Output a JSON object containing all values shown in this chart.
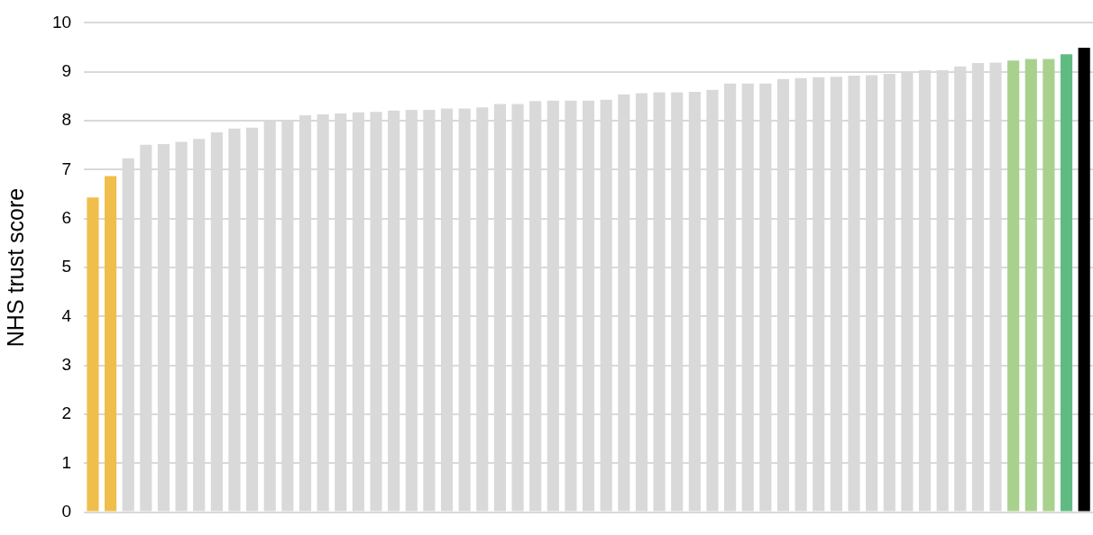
{
  "chart_data": {
    "type": "bar",
    "ylabel": "NHS trust score",
    "categories": [
      null,
      null,
      null,
      null,
      null,
      null,
      null,
      null,
      null,
      null,
      null,
      null,
      null,
      null,
      null,
      null,
      null,
      null,
      null,
      null,
      null,
      null,
      null,
      null,
      null,
      null,
      null,
      null,
      null,
      null,
      null,
      null,
      null,
      null,
      null,
      null,
      null,
      null,
      null,
      null,
      null,
      null,
      null,
      null,
      null,
      null,
      null,
      null,
      null,
      null,
      null,
      null,
      null,
      null,
      null,
      null,
      null
    ],
    "values": [
      6.43,
      6.87,
      7.23,
      7.51,
      7.52,
      7.57,
      7.63,
      7.76,
      7.84,
      7.86,
      8.0,
      8.01,
      8.11,
      8.13,
      8.15,
      8.17,
      8.18,
      8.21,
      8.22,
      8.22,
      8.25,
      8.25,
      8.27,
      8.34,
      8.34,
      8.4,
      8.41,
      8.41,
      8.41,
      8.43,
      8.54,
      8.56,
      8.58,
      8.58,
      8.59,
      8.63,
      8.76,
      8.76,
      8.76,
      8.85,
      8.87,
      8.89,
      8.9,
      8.92,
      8.93,
      8.96,
      9.0,
      9.03,
      9.03,
      9.11,
      9.18,
      9.19,
      9.23,
      9.26,
      9.26,
      9.36,
      9.49
    ],
    "colors": [
      "#f0be4b",
      "#f0be4b",
      "#d9d9d9",
      "#d9d9d9",
      "#d9d9d9",
      "#d9d9d9",
      "#d9d9d9",
      "#d9d9d9",
      "#d9d9d9",
      "#d9d9d9",
      "#d9d9d9",
      "#d9d9d9",
      "#d9d9d9",
      "#d9d9d9",
      "#d9d9d9",
      "#d9d9d9",
      "#d9d9d9",
      "#d9d9d9",
      "#d9d9d9",
      "#d9d9d9",
      "#d9d9d9",
      "#d9d9d9",
      "#d9d9d9",
      "#d9d9d9",
      "#d9d9d9",
      "#d9d9d9",
      "#d9d9d9",
      "#d9d9d9",
      "#d9d9d9",
      "#d9d9d9",
      "#d9d9d9",
      "#d9d9d9",
      "#d9d9d9",
      "#d9d9d9",
      "#d9d9d9",
      "#d9d9d9",
      "#d9d9d9",
      "#d9d9d9",
      "#d9d9d9",
      "#d9d9d9",
      "#d9d9d9",
      "#d9d9d9",
      "#d9d9d9",
      "#d9d9d9",
      "#d9d9d9",
      "#d9d9d9",
      "#d9d9d9",
      "#d9d9d9",
      "#d9d9d9",
      "#d9d9d9",
      "#d9d9d9",
      "#d9d9d9",
      "#a9d18e",
      "#a9d18e",
      "#a9d18e",
      "#5fbb82",
      "#000000"
    ],
    "ylim": [
      0,
      10
    ],
    "yticks": [
      0,
      1,
      2,
      3,
      4,
      5,
      6,
      7,
      8,
      9,
      10
    ],
    "grid": "y",
    "tick_labels": "y",
    "legend": false
  }
}
